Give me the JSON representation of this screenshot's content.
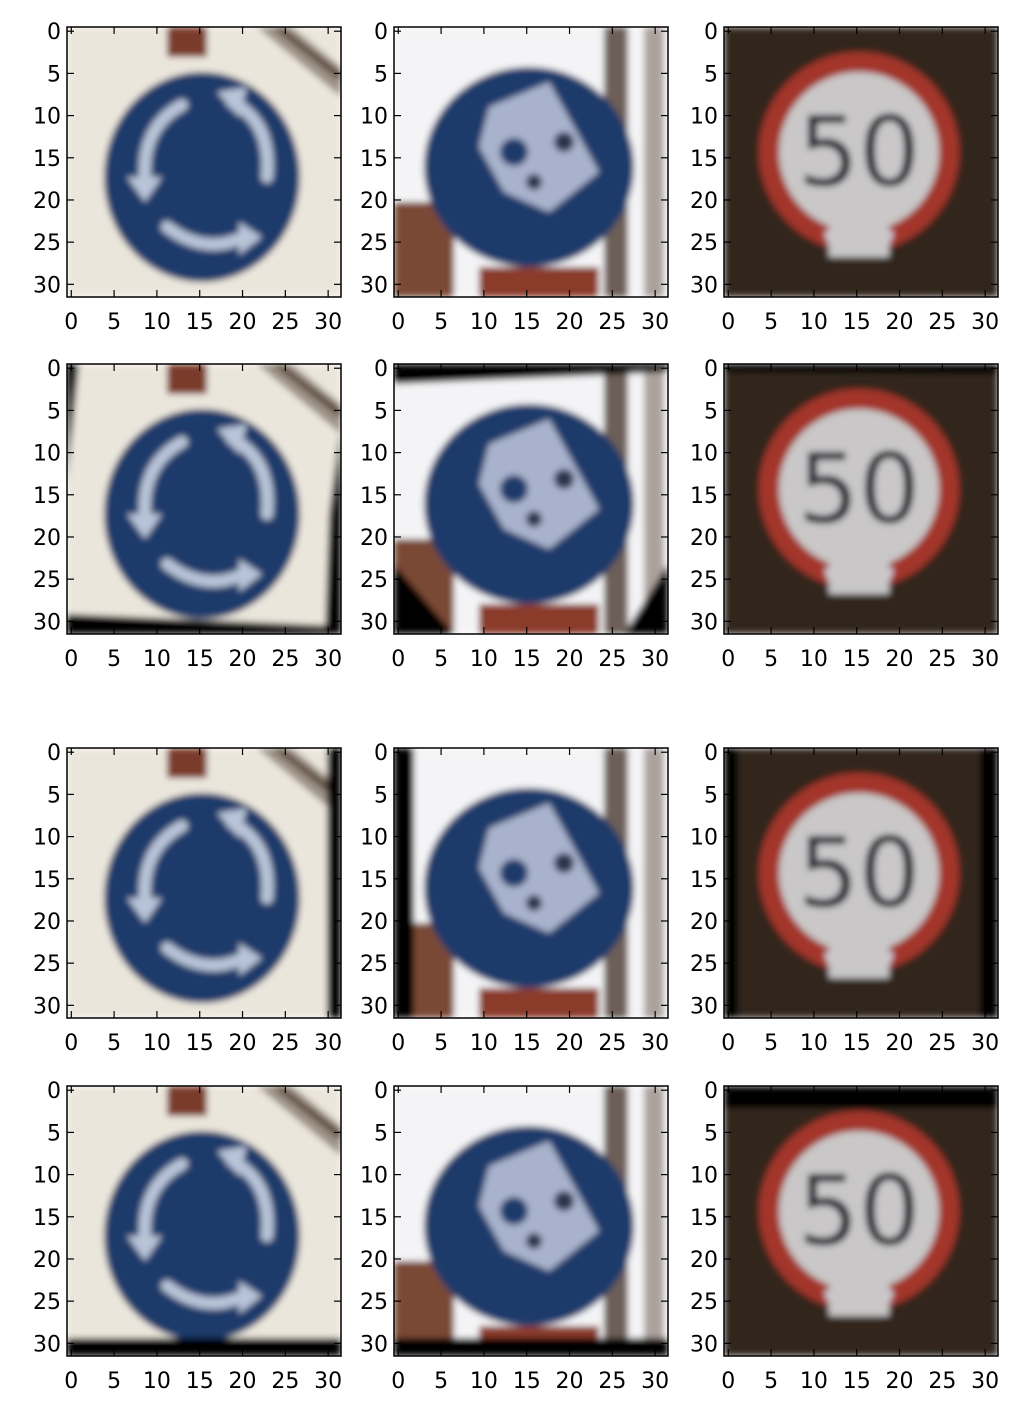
{
  "figure": {
    "rows": 4,
    "cols": 3,
    "x_ticks": [
      "0",
      "5",
      "10",
      "15",
      "20",
      "25",
      "30"
    ],
    "y_ticks": [
      "0",
      "5",
      "10",
      "15",
      "20",
      "25",
      "30"
    ],
    "panels": [
      {
        "subject": "roundabout-sign",
        "sign_text": ""
      },
      {
        "subject": "bicycle-path-sign",
        "sign_text": ""
      },
      {
        "subject": "speed-limit-sign",
        "sign_text": "50"
      },
      {
        "subject": "roundabout-sign",
        "sign_text": ""
      },
      {
        "subject": "bicycle-path-sign",
        "sign_text": ""
      },
      {
        "subject": "speed-limit-sign",
        "sign_text": "50"
      },
      {
        "subject": "roundabout-sign",
        "sign_text": ""
      },
      {
        "subject": "bicycle-path-sign",
        "sign_text": ""
      },
      {
        "subject": "speed-limit-sign",
        "sign_text": "50"
      },
      {
        "subject": "roundabout-sign",
        "sign_text": ""
      },
      {
        "subject": "bicycle-path-sign",
        "sign_text": ""
      },
      {
        "subject": "speed-limit-sign",
        "sign_text": "50"
      }
    ],
    "colors": {
      "sign_blue": "#1f3a6b",
      "sign_red": "#a3352a",
      "cream_bg": "#ebe6dc",
      "dark_bg": "#2a221c",
      "arrow": "#b8c4d8"
    }
  }
}
